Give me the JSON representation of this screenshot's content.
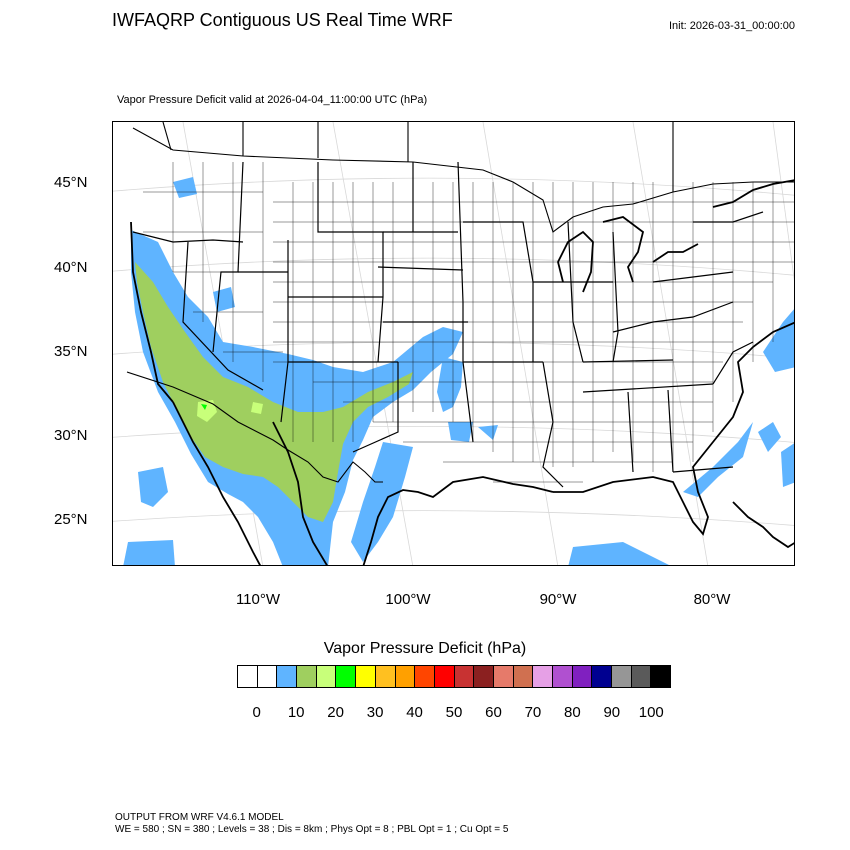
{
  "header": {
    "title": "IWFAQRP Contiguous US Real Time WRF",
    "init": "Init: 2026-03-31_00:00:00",
    "subtitle": "Vapor Pressure Deficit valid at 2026-04-04_11:00:00 UTC   (hPa)"
  },
  "axes": {
    "lat_labels": [
      "45°N",
      "40°N",
      "35°N",
      "30°N",
      "25°N"
    ],
    "lon_labels": [
      "110°W",
      "100°W",
      "90°W",
      "80°W"
    ]
  },
  "legend": {
    "title": "Vapor Pressure Deficit  (hPa)",
    "colors": [
      "#ffffff",
      "#ffffff",
      "#5fb4ff",
      "#9fcf5f",
      "#c8ff7a",
      "#00ff00",
      "#ffff00",
      "#ffc020",
      "#ffa000",
      "#ff4500",
      "#ff0000",
      "#c83232",
      "#8b2020",
      "#e67a6a",
      "#d07050",
      "#e6a0e6",
      "#b050d0",
      "#8020c0",
      "#000090",
      "#969696",
      "#5a5a5a",
      "#000000"
    ],
    "tick_labels": [
      "0",
      "10",
      "20",
      "30",
      "40",
      "50",
      "60",
      "70",
      "80",
      "90",
      "100"
    ]
  },
  "footer": {
    "line1": "OUTPUT FROM WRF V4.6.1 MODEL",
    "line2": "WE = 580 ; SN = 380 ; Levels = 38 ; Dis = 8km ; Phys Opt = 8 ; PBL Opt = 1 ; Cu Opt = 5"
  }
}
